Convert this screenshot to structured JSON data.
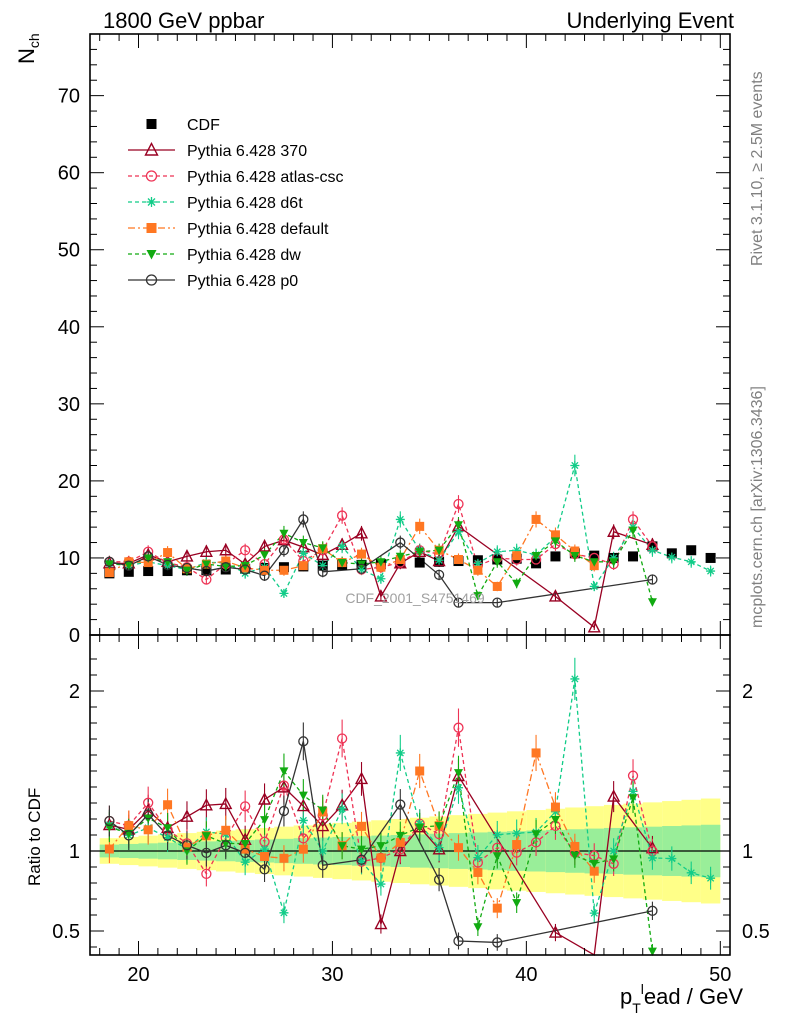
{
  "header": {
    "left_title": "1800 GeV ppbar",
    "right_title": "Underlying Event",
    "side_note_top": "Rivet 3.1.10, ≥ 2.5M events",
    "side_note_bottom": "mcplots.cern.ch [arXiv:1306.3436]",
    "watermark": "CDF_2001_S4751469"
  },
  "chart_data": [
    {
      "type": "scatter",
      "panel": "main",
      "ylabel": "N_ch",
      "ylim": [
        0,
        78
      ],
      "xlim": [
        17.5,
        50.5
      ],
      "y_ticks": [
        "0",
        "10",
        "20",
        "30",
        "40",
        "50",
        "60",
        "70"
      ],
      "x_ticks": [
        "20",
        "30",
        "40",
        "50"
      ],
      "legend_position": "top-left",
      "series": [
        {
          "name": "CDF",
          "color": "#000000",
          "style": "marker",
          "x": [
            18.5,
            19.5,
            20.5,
            21.5,
            22.5,
            23.5,
            24.5,
            25.5,
            26.5,
            27.5,
            28.5,
            29.5,
            30.5,
            31.5,
            32.5,
            33.5,
            34.5,
            35.5,
            36.5,
            37.5,
            38.5,
            39.5,
            40.5,
            41.5,
            42.5,
            43.5,
            44.5,
            45.5,
            46.5,
            47.5,
            48.5,
            49.5
          ],
          "y": [
            8.0,
            8.2,
            8.3,
            8.3,
            8.4,
            8.4,
            8.5,
            8.6,
            8.7,
            8.8,
            8.9,
            9.0,
            9.1,
            9.1,
            9.2,
            9.3,
            9.4,
            9.5,
            9.6,
            9.7,
            9.8,
            9.9,
            9.3,
            10.2,
            10.6,
            10.3,
            10.0,
            10.2,
            11.5,
            10.6,
            11.0,
            10.0
          ]
        },
        {
          "name": "Pythia 6.428 370",
          "color": "#990022",
          "style": "solid",
          "x": [
            18.5,
            19.5,
            20.5,
            21.5,
            22.5,
            23.5,
            24.5,
            25.5,
            26.5,
            27.5,
            28.5,
            29.5,
            30.5,
            31.5,
            32.5,
            33.5,
            34.5,
            35.5,
            36.5,
            41.5,
            43.5,
            44.5,
            46.5
          ],
          "y": [
            9.3,
            9.3,
            10.4,
            9.5,
            10.2,
            10.8,
            11.0,
            9.2,
            11.5,
            12.3,
            11.4,
            10.4,
            11.7,
            13.2,
            5.0,
            9.3,
            10.8,
            9.6,
            14.1,
            5.0,
            1.0,
            13.4,
            11.7
          ]
        },
        {
          "name": "Pythia 6.428 atlas-csc",
          "color": "#ee3355",
          "style": "dashed",
          "x": [
            18.5,
            19.5,
            20.5,
            21.5,
            22.5,
            23.5,
            24.5,
            25.5,
            26.5,
            27.5,
            28.5,
            29.5,
            30.5,
            31.5,
            32.5,
            33.5,
            34.5,
            35.5,
            36.5,
            37.5,
            38.5,
            39.5,
            40.5,
            41.5,
            42.5,
            43.5,
            44.5,
            45.5,
            46.5
          ],
          "y": [
            9.5,
            9.5,
            10.8,
            9.4,
            8.8,
            7.2,
            9.2,
            11.0,
            9.2,
            12.4,
            9.6,
            11.0,
            15.5,
            8.5,
            8.8,
            9.4,
            11.0,
            10.5,
            17.0,
            9.0,
            10.0,
            9.8,
            9.8,
            11.8,
            10.5,
            10.0,
            9.2,
            15.0,
            11.5
          ]
        },
        {
          "name": "Pythia 6.428 d6t",
          "color": "#11cc88",
          "style": "dashed",
          "x": [
            18.5,
            19.5,
            20.5,
            21.5,
            22.5,
            23.5,
            24.5,
            25.5,
            26.5,
            27.5,
            28.5,
            29.5,
            30.5,
            31.5,
            32.5,
            33.5,
            34.5,
            35.5,
            36.5,
            37.5,
            38.5,
            39.5,
            40.5,
            41.5,
            42.5,
            43.5,
            44.5,
            45.5,
            46.5,
            47.5,
            48.5,
            49.5
          ],
          "y": [
            9.3,
            9.0,
            9.5,
            9.0,
            8.5,
            9.4,
            9.4,
            8.0,
            8.8,
            5.4,
            10.6,
            9.0,
            11.5,
            8.5,
            7.3,
            15.0,
            11.0,
            9.7,
            13.4,
            9.3,
            10.8,
            11.0,
            10.4,
            12.7,
            22.0,
            6.3,
            10.0,
            14.0,
            11.0,
            10.1,
            9.5,
            8.3
          ]
        },
        {
          "name": "Pythia 6.428 default",
          "color": "#ff7722",
          "style": "dashdot",
          "x": [
            18.5,
            19.5,
            20.5,
            21.5,
            22.5,
            23.5,
            24.5,
            25.5,
            26.5,
            27.5,
            28.5,
            29.5,
            30.5,
            31.5,
            32.5,
            33.5,
            34.5,
            35.5,
            36.5,
            37.5,
            38.5,
            39.5,
            40.5,
            41.5,
            42.5,
            43.5
          ],
          "y": [
            8.1,
            9.5,
            9.4,
            10.7,
            8.6,
            9.2,
            9.6,
            8.7,
            8.4,
            8.4,
            9.0,
            11.2,
            9.4,
            10.5,
            8.8,
            9.8,
            14.1,
            11.0,
            9.8,
            8.4,
            6.3,
            10.3,
            15.0,
            13.0,
            10.9,
            9.0
          ]
        },
        {
          "name": "Pythia 6.428 dw",
          "color": "#11aa11",
          "style": "dashed",
          "x": [
            18.5,
            19.5,
            20.5,
            21.5,
            22.5,
            23.5,
            24.5,
            25.5,
            26.5,
            27.5,
            28.5,
            29.5,
            30.5,
            31.5,
            32.5,
            33.5,
            34.5,
            35.5,
            36.5,
            37.5,
            38.5,
            39.5,
            40.5,
            41.5,
            42.5,
            43.5,
            44.5,
            45.5,
            46.5
          ],
          "y": [
            9.2,
            9.1,
            10.0,
            9.5,
            8.4,
            9.2,
            8.9,
            9.0,
            10.4,
            13.2,
            12.0,
            11.3,
            9.4,
            9.2,
            9.5,
            10.2,
            10.8,
            11.0,
            14.3,
            5.1,
            9.5,
            6.7,
            10.3,
            12.2,
            10.3,
            9.5,
            9.5,
            13.6,
            4.3
          ]
        },
        {
          "name": "Pythia 6.428 p0",
          "color": "#333333",
          "style": "solid",
          "x": [
            18.5,
            19.5,
            20.5,
            21.5,
            22.5,
            23.5,
            24.5,
            25.5,
            26.5,
            27.5,
            28.5,
            29.5,
            31.5,
            33.5,
            35.5,
            36.5,
            38.5,
            46.5
          ],
          "y": [
            9.5,
            9.0,
            10.2,
            9.1,
            8.7,
            8.3,
            8.8,
            8.5,
            7.7,
            11.0,
            15.0,
            8.2,
            8.6,
            12.0,
            7.8,
            4.2,
            4.2,
            7.2
          ]
        }
      ]
    },
    {
      "type": "scatter",
      "panel": "ratio",
      "ylabel": "Ratio to CDF",
      "ylim": [
        0.35,
        2.35
      ],
      "xlim": [
        17.5,
        50.5
      ],
      "xlabel": "p_T^lead / GeV",
      "y_ticks": [
        "0.5",
        "1",
        "2"
      ],
      "x_ticks": [
        "20",
        "30",
        "40",
        "50"
      ],
      "band_1sigma_color": "#99ee99",
      "band_2sigma_color": "#ffff88"
    }
  ]
}
